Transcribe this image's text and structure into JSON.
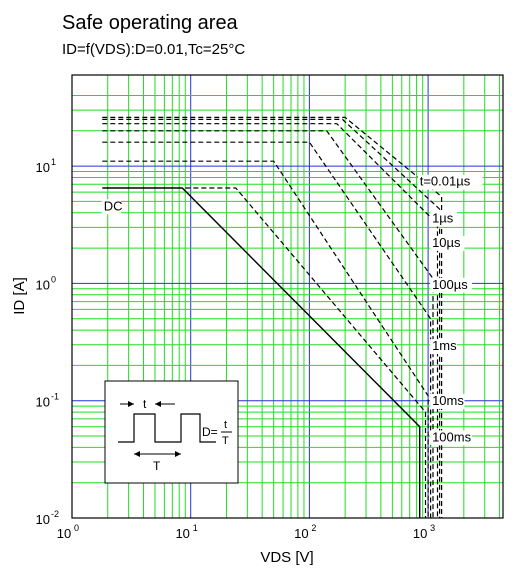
{
  "chart_data": {
    "type": "line",
    "title": "Safe operating area",
    "subtitle": "ID=f(VDS):D=0.01,Tc=25°C",
    "xlabel": "VDS [V]",
    "ylabel": "ID [A]",
    "xscale": "log",
    "yscale": "log",
    "xlim": [
      1,
      5000
    ],
    "ylim": [
      0.01,
      40
    ],
    "grid": true,
    "colors": {
      "minor_grid": "#22dd22",
      "major_grid": "#2233dd",
      "axes": "#000000",
      "curves": "#000000"
    },
    "x_ticks": [
      {
        "base": "10",
        "exp": "0",
        "value": 1
      },
      {
        "base": "10",
        "exp": "1",
        "value": 10
      },
      {
        "base": "10",
        "exp": "2",
        "value": 100
      },
      {
        "base": "10",
        "exp": "3",
        "value": 1000
      }
    ],
    "y_ticks": [
      {
        "base": "10",
        "exp": "-2",
        "value": 0.01
      },
      {
        "base": "10",
        "exp": "-1",
        "value": 0.1
      },
      {
        "base": "10",
        "exp": "0",
        "value": 1
      },
      {
        "base": "10",
        "exp": "1",
        "value": 10
      }
    ],
    "series": [
      {
        "name": "DC",
        "style": "solid",
        "x": [
          1.8,
          8.5,
          850,
          850
        ],
        "y": [
          6.5,
          6.5,
          0.06,
          0.01
        ]
      },
      {
        "name": "100ms",
        "style": "dashed",
        "x": [
          9,
          24,
          950,
          950
        ],
        "y": [
          6.5,
          6.5,
          0.08,
          0.01
        ]
      },
      {
        "name": "10ms",
        "style": "dashed",
        "x": [
          1.8,
          50,
          1000,
          1000
        ],
        "y": [
          11,
          11,
          0.11,
          0.01
        ]
      },
      {
        "name": "1ms",
        "style": "dashed",
        "x": [
          1.8,
          100,
          1050,
          1050
        ],
        "y": [
          16,
          16,
          0.5,
          0.01
        ]
      },
      {
        "name": "100µs",
        "style": "dashed",
        "x": [
          1.8,
          140,
          1100,
          1100
        ],
        "y": [
          20,
          20,
          1.1,
          0.01
        ]
      },
      {
        "name": "10µs",
        "style": "dashed",
        "x": [
          1.8,
          170,
          1200,
          1200
        ],
        "y": [
          23,
          23,
          3.2,
          0.01
        ]
      },
      {
        "name": "1µs",
        "style": "dashed",
        "x": [
          1.8,
          190,
          1250,
          1250
        ],
        "y": [
          25,
          25,
          4.3,
          0.01
        ]
      },
      {
        "name": "t=0.01µs",
        "style": "dashed",
        "x": [
          1.8,
          200,
          1300,
          1300
        ],
        "y": [
          26,
          26,
          5.5,
          0.01
        ]
      }
    ],
    "curve_labels": [
      {
        "text": "DC",
        "x": 1.85,
        "y": 4.2
      },
      {
        "text": "t=0.01µs",
        "x": 850,
        "y": 6.8
      },
      {
        "text": "1µs",
        "x": 1080,
        "y": 3.3
      },
      {
        "text": "10µs",
        "x": 1080,
        "y": 2.05
      },
      {
        "text": "100µs",
        "x": 1080,
        "y": 0.9
      },
      {
        "text": "1ms",
        "x": 1080,
        "y": 0.27
      },
      {
        "text": "10ms",
        "x": 1080,
        "y": 0.092
      },
      {
        "text": "100ms",
        "x": 1080,
        "y": 0.045
      }
    ],
    "inset": {
      "t_label": "t",
      "T_label": "T",
      "d_prefix": "D=",
      "d_numerator": "t",
      "d_denominator": "T"
    }
  }
}
